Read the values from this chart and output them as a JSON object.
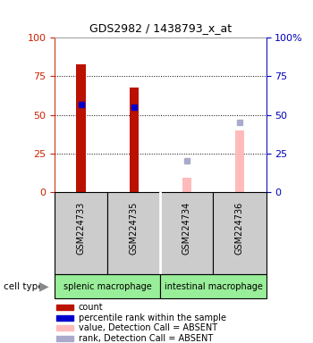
{
  "title": "GDS2982 / 1438793_x_at",
  "samples": [
    "GSM224733",
    "GSM224735",
    "GSM224734",
    "GSM224736"
  ],
  "red_bars": [
    83,
    68,
    0,
    0
  ],
  "pink_bars": [
    0,
    0,
    9,
    40
  ],
  "blue_markers": [
    57,
    55,
    0,
    0
  ],
  "lightblue_markers": [
    0,
    0,
    20,
    45
  ],
  "ylim": [
    0,
    100
  ],
  "yticks": [
    0,
    25,
    50,
    75,
    100
  ],
  "left_axis_color": "#cc2200",
  "right_axis_color": "#0000bb",
  "bar_width": 0.18,
  "red_bar_color": "#bb1100",
  "pink_bar_color": "#ffbbbb",
  "blue_marker_color": "#0000cc",
  "lightblue_marker_color": "#aaaacc",
  "bg_color": "#ffffff",
  "sample_box_color": "#cccccc",
  "cell_type_color": "#99ee99",
  "legend_items": [
    {
      "label": "count",
      "color": "#bb1100"
    },
    {
      "label": "percentile rank within the sample",
      "color": "#0000cc"
    },
    {
      "label": "value, Detection Call = ABSENT",
      "color": "#ffbbbb"
    },
    {
      "label": "rank, Detection Call = ABSENT",
      "color": "#aaaacc"
    }
  ]
}
